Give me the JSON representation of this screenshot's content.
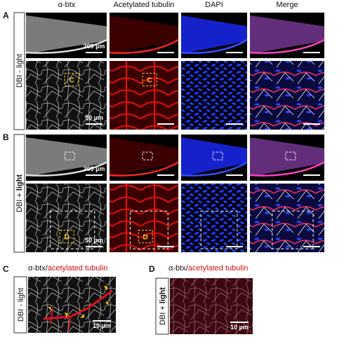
{
  "columns": [
    "α-btx",
    "Acetylated tubulin",
    "DAPI",
    "Merge"
  ],
  "panel_a": {
    "letter": "A",
    "row_label": "DBI - light",
    "scale_overview": "200 µm",
    "scale_detail": "50 µm",
    "inset": "C"
  },
  "panel_b": {
    "letter": "B",
    "row_label": [
      "DBI +",
      "light"
    ],
    "scale_overview": "200 µm",
    "scale_detail": "50 µm",
    "inset": "D"
  },
  "panel_c": {
    "letter": "C",
    "title": [
      "α-btx/",
      "acetylated tubulin"
    ],
    "row_label": "DBI - light",
    "scale": "10 µm"
  },
  "panel_d": {
    "letter": "D",
    "title": [
      "α-btx/",
      "acetylated tubulin"
    ],
    "row_label": [
      "DBI +",
      "light"
    ],
    "scale": "10 µm"
  }
}
